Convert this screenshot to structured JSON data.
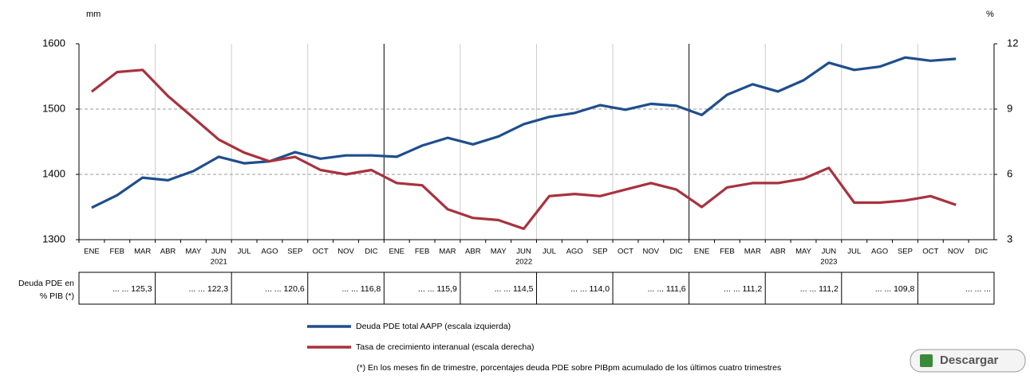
{
  "chart_data": {
    "type": "line",
    "unit_left": "mm",
    "unit_right": "%",
    "categories": [
      "ENE",
      "FEB",
      "MAR",
      "ABR",
      "MAY",
      "JUN",
      "JUL",
      "AGO",
      "SEP",
      "OCT",
      "NOV",
      "DIC",
      "ENE",
      "FEB",
      "MAR",
      "ABR",
      "MAY",
      "JUN",
      "JUL",
      "AGO",
      "SEP",
      "OCT",
      "NOV",
      "DIC",
      "ENE",
      "FEB",
      "MAR",
      "ABR",
      "MAY",
      "JUN",
      "JUL",
      "AGO",
      "SEP",
      "OCT",
      "NOV",
      "DIC"
    ],
    "year_labels": [
      "2021",
      "2022",
      "2023"
    ],
    "series": [
      {
        "name": "Deuda PDE total AAPP (escala izquierda)",
        "color": "#1f4e8c",
        "axis": "y",
        "values": [
          1349,
          1368,
          1395,
          1391,
          1405,
          1427,
          1417,
          1420,
          1434,
          1424,
          1429,
          1429,
          1427,
          1444,
          1456,
          1446,
          1458,
          1477,
          1488,
          1494,
          1506,
          1499,
          1508,
          1505,
          1491,
          1522,
          1538,
          1527,
          1544,
          1571,
          1560,
          1565,
          1579,
          1574,
          1577,
          null
        ]
      },
      {
        "name": "Tasa de crecimiento interanual (escala derecha)",
        "color": "#a8323e",
        "axis": "y2",
        "values": [
          9.8,
          10.7,
          10.8,
          9.6,
          8.6,
          7.6,
          7.0,
          6.6,
          6.8,
          6.2,
          6.0,
          6.2,
          5.6,
          5.5,
          4.4,
          4.0,
          3.9,
          3.5,
          5.0,
          5.1,
          5.0,
          5.3,
          5.6,
          5.3,
          4.5,
          5.4,
          5.6,
          5.6,
          5.8,
          6.3,
          4.7,
          4.7,
          4.8,
          5.0,
          4.6,
          null
        ]
      }
    ],
    "ylim": [
      1300,
      1600
    ],
    "yticks": [
      1300,
      1400,
      1500,
      1600
    ],
    "y2lim": [
      3,
      12
    ],
    "y2ticks": [
      3,
      6,
      9,
      12
    ],
    "grid": true,
    "table_label": [
      "Deuda PDE en",
      "% PIB (*)"
    ],
    "table_cells": [
      "... ... 125,3",
      "... ... 122,3",
      "... ... 120,6",
      "... ... 116,8",
      "... ... 115,9",
      "... ... 114,5",
      "... ... 114,0",
      "... ... 111,6",
      "... ... 111,2",
      "... ... 111,2",
      "... ... 109,8",
      "... ... ..."
    ],
    "footnote": "(*) En los meses fin de trimestre, porcentajes deuda PDE sobre PIBpm acumulado de los últimos cuatro trimestres",
    "button": "Descargar"
  }
}
